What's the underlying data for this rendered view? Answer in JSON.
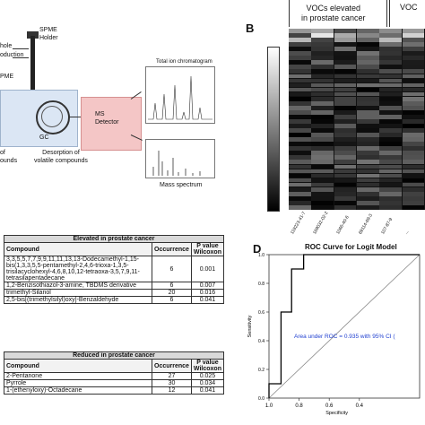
{
  "panel_a": {
    "labels": {
      "hole": "hole",
      "oduction": "oduction",
      "spme_left": "PME",
      "holder": "SPME\nHolder",
      "gc": "GC",
      "ms": "MS\nDetector",
      "desorption": "Desorption of\nvolatile compounds",
      "of": "of",
      "ounds": "ounds",
      "tic": "Total ion chromatogram",
      "mass_spectrum": "Mass spectrum"
    }
  },
  "panel_b": {
    "letter": "B",
    "group1_label": "VOCs elevated\nin prostate cancer",
    "group2_label": "VOC",
    "x_labels": [
      "119223-41-7",
      "169032-02-2",
      "1066-40-6",
      "69114-69-3",
      "107-87-9",
      "..."
    ]
  },
  "table_elevated": {
    "title": "Elevated in prostate cancer",
    "columns": [
      "Compound",
      "Occurrence",
      "P value\nWilcoxon"
    ],
    "rows": [
      {
        "compound": "3,3,5,5,7,7,9,9,11,11,13,13-Dodecamethyl-1,15-bis(1,3,3,5,5-pentamethyl-2,4,6-trioxa-1,3,5-trisilacyclohexyl-4,6,8,10,12-tetraoxa-3,5,7,9,11-tetrasilapentadecane",
        "occurrence": "6",
        "p": "0.001"
      },
      {
        "compound": "1,2-Benzisothiazol-3-amine, TBDMS derivative",
        "occurrence": "6",
        "p": "0.007"
      },
      {
        "compound": "trimethyl-Silanol",
        "occurrence": "20",
        "p": "0.016"
      },
      {
        "compound": "2,5-bis[(trimethylsilyl)oxy]-Benzaldehyde",
        "occurrence": "6",
        "p": "0.041"
      }
    ]
  },
  "table_reduced": {
    "title": "Reduced in prostate cancer",
    "columns": [
      "Compound",
      "Occurrence",
      "P value\nWilcoxon"
    ],
    "rows": [
      {
        "compound": "2-Pentanone",
        "occurrence": "27",
        "p": "0.025"
      },
      {
        "compound": "Pyrrole",
        "occurrence": "30",
        "p": "0.034"
      },
      {
        "compound": "1-(ethenyloxy)-Octadecane",
        "occurrence": "12",
        "p": "0.041"
      }
    ]
  },
  "panel_d": {
    "letter": "D",
    "chart_data": {
      "type": "line",
      "title": "ROC Curve for Logit Model",
      "xlabel": "Specificity",
      "ylabel": "Sensitivity",
      "x_reversed": true,
      "xlim": [
        1.0,
        0.0
      ],
      "ylim": [
        0.0,
        1.0
      ],
      "x_ticks": [
        "1.0",
        "0.8",
        "0.6",
        "0.4"
      ],
      "y_ticks": [
        "0.0",
        "0.2",
        "0.4",
        "0.6",
        "0.8",
        "1.0"
      ],
      "series": [
        {
          "values": [
            {
              "x": 1.0,
              "y": 0.0
            },
            {
              "x": 1.0,
              "y": 0.1
            },
            {
              "x": 0.92,
              "y": 0.1
            },
            {
              "x": 0.92,
              "y": 0.6
            },
            {
              "x": 0.85,
              "y": 0.6
            },
            {
              "x": 0.85,
              "y": 0.8
            },
            {
              "x": 0.85,
              "y": 0.9
            },
            {
              "x": 0.77,
              "y": 0.9
            },
            {
              "x": 0.77,
              "y": 1.0
            },
            {
              "x": 0.0,
              "y": 1.0
            }
          ]
        }
      ],
      "reference_line": true,
      "annotation": "Area under ROC = 0.935 with 95% CI (",
      "annotation_color": "#1f3fd0"
    }
  }
}
